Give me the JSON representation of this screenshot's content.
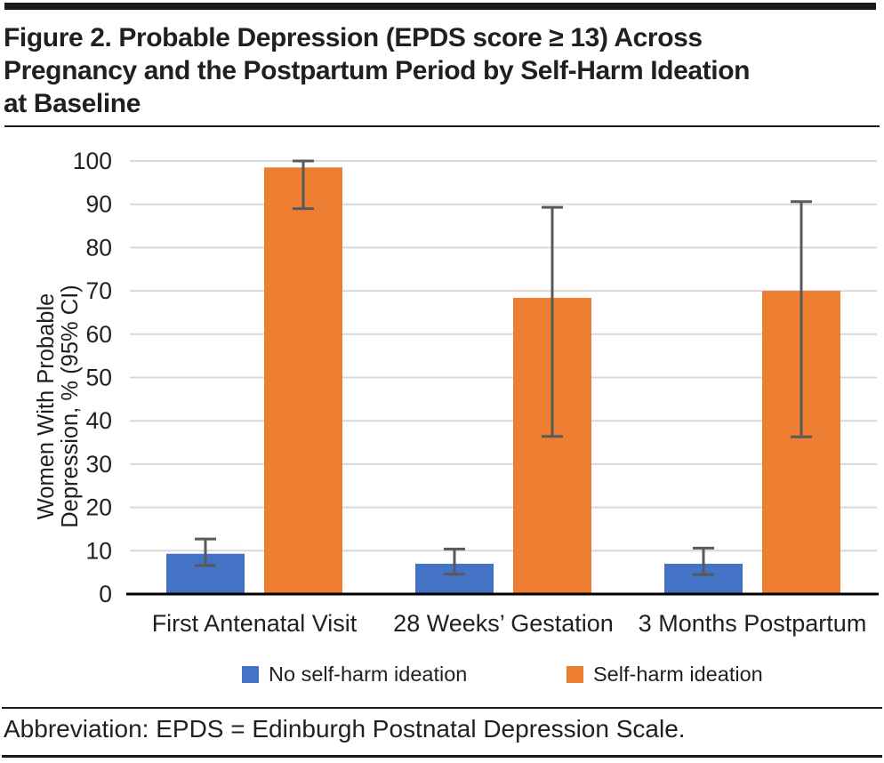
{
  "figure": {
    "title_lines": [
      "Figure 2. Probable Depression (EPDS score ≥ 13) Across",
      "Pregnancy and the Postpartum Period by Self-Harm Ideation",
      "at Baseline"
    ],
    "footer": "Abbreviation: EPDS = Edinburgh Postnatal Depression Scale."
  },
  "colors": {
    "blue": "#4472C4",
    "orange": "#ED7D31",
    "grid": "#D9D9D9",
    "error_bar": "#595959",
    "axis": "#000000",
    "text": "#231F20"
  },
  "chart_data": {
    "type": "bar",
    "title": "",
    "categories": [
      "First Antenatal Visit",
      "28 Weeks’ Gestation",
      "3 Months Postpartum"
    ],
    "series": [
      {
        "name": "No self-harm ideation",
        "color": "#4472C4",
        "values": [
          9.3,
          7.0,
          7.0
        ],
        "ci_low": [
          6.6,
          4.6,
          4.5
        ],
        "ci_high": [
          12.7,
          10.4,
          10.6
        ]
      },
      {
        "name": "Self-harm ideation",
        "color": "#ED7D31",
        "values": [
          98.5,
          68.4,
          70.0
        ],
        "ci_low": [
          89.0,
          36.4,
          36.3
        ],
        "ci_high": [
          100.0,
          89.3,
          90.6
        ]
      }
    ],
    "xlabel": "",
    "ylabel_lines": [
      "Women With Probable",
      "Depression, % (95% CI)"
    ],
    "ylabel": "Women With Probable Depression, % (95% CI)",
    "ylim": [
      0,
      100
    ],
    "yticks": [
      0,
      10,
      20,
      30,
      40,
      50,
      60,
      70,
      80,
      90,
      100
    ],
    "grid": true,
    "error_bars": "95% CI",
    "legend_position": "bottom"
  }
}
